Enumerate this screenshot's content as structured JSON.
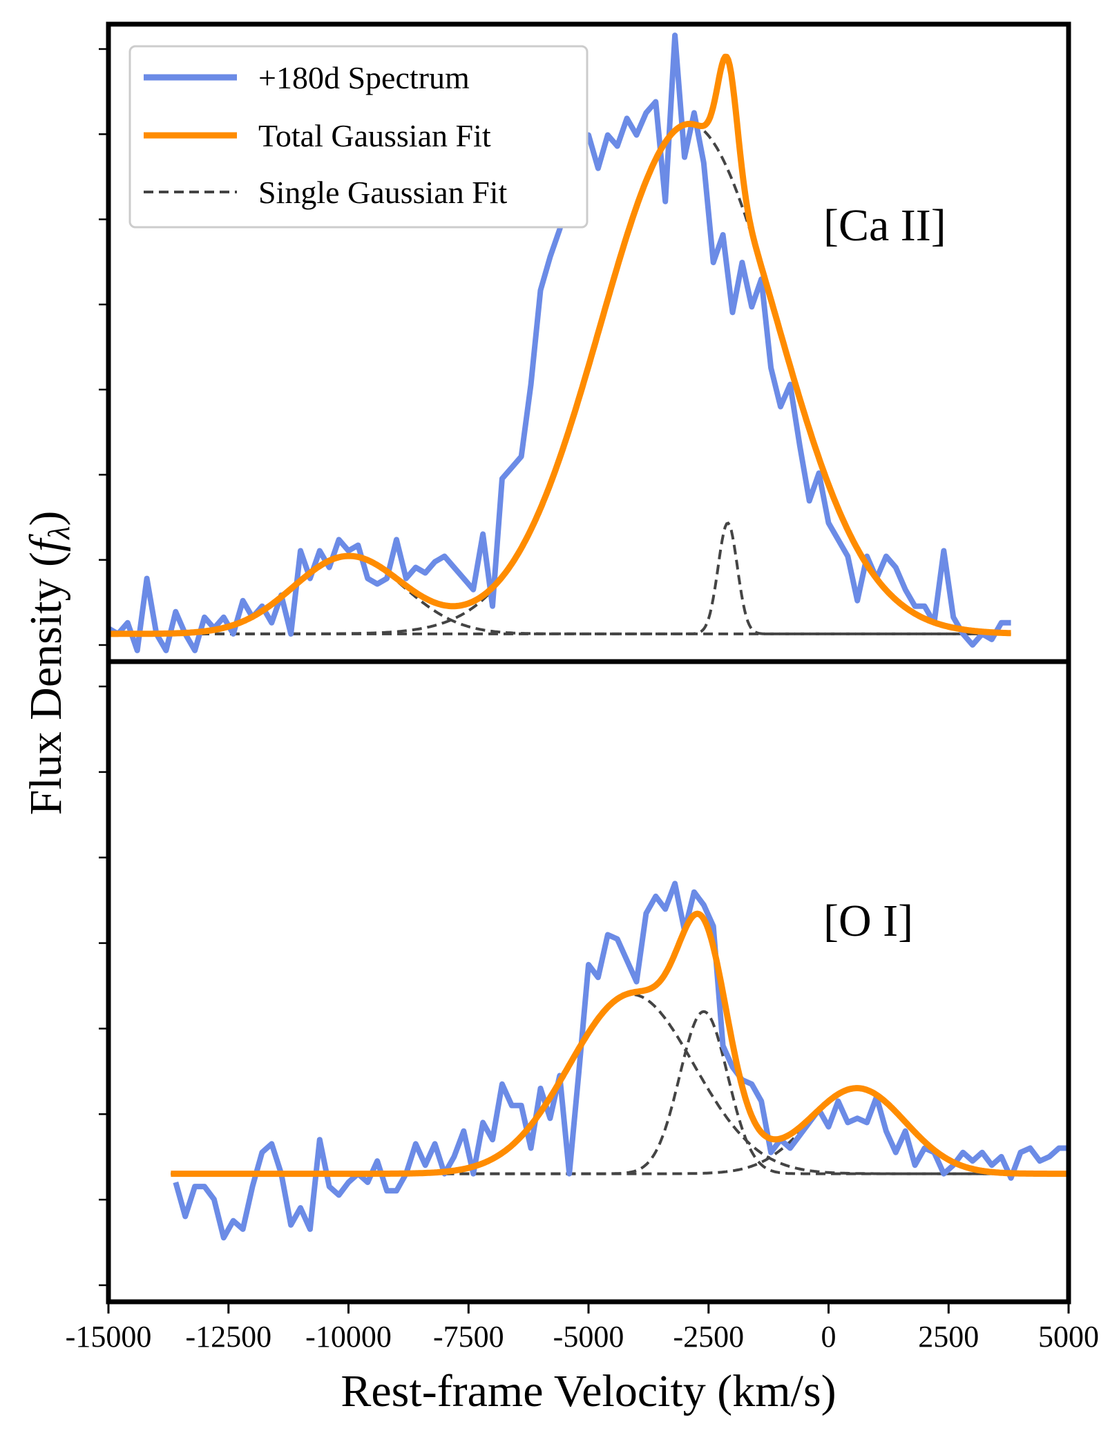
{
  "chart_data": {
    "type": "line",
    "figure": {
      "xlabel": "Rest-frame Velocity (km/s)",
      "ylabel_text": "Flux Density (",
      "ylabel_symbol": "f",
      "ylabel_subscript": "λ",
      "ylabel_close": ")",
      "xlim": [
        -15000,
        5000
      ],
      "xticks": [
        -15000,
        -12500,
        -10000,
        -7500,
        -5000,
        -2500,
        0,
        2500,
        5000
      ],
      "xtick_labels": [
        "-15000",
        "-12500",
        "-10000",
        "-7500",
        "-5000",
        "-2500",
        "0",
        "2500",
        "5000"
      ],
      "y_tick_labels_shown": false,
      "colors": {
        "spectrum": "#6b8be6",
        "total_fit": "#ff8c00",
        "component": "#444444"
      }
    },
    "legend": {
      "placement": "top-left of upper panel",
      "entries": [
        {
          "label": "+180d Spectrum",
          "style": "spectrum"
        },
        {
          "label": "Total Gaussian Fit",
          "style": "total"
        },
        {
          "label": "Single Gaussian Fit",
          "style": "component"
        }
      ]
    },
    "panels": [
      {
        "label": "[Ca II]",
        "ylim": [
          -0.05,
          1.1
        ],
        "baseline": 0,
        "spectrum": {
          "name": "+180d Spectrum",
          "x": [
            -15000,
            -14800,
            -14600,
            -14400,
            -14200,
            -14000,
            -13800,
            -13600,
            -13400,
            -13200,
            -13000,
            -12800,
            -12600,
            -12400,
            -12200,
            -12000,
            -11800,
            -11600,
            -11400,
            -11200,
            -11000,
            -10800,
            -10600,
            -10400,
            -10200,
            -10000,
            -9800,
            -9600,
            -9400,
            -9200,
            -9000,
            -8800,
            -8600,
            -8400,
            -8200,
            -8000,
            -7800,
            -7600,
            -7400,
            -7200,
            -7000,
            -6800,
            -6600,
            -6400,
            -6200,
            -6000,
            -5800,
            -5600,
            -5400,
            -5200,
            -5000,
            -4800,
            -4600,
            -4400,
            -4200,
            -4000,
            -3800,
            -3600,
            -3400,
            -3200,
            -3000,
            -2800,
            -2600,
            -2400,
            -2200,
            -2000,
            -1800,
            -1600,
            -1400,
            -1200,
            -1000,
            -800,
            -600,
            -400,
            -200,
            0,
            200,
            400,
            600,
            800,
            1000,
            1200,
            1400,
            1600,
            1800,
            2000,
            2200,
            2400,
            2600,
            2800,
            3000,
            3200,
            3400,
            3600,
            3800
          ],
          "values": [
            0.01,
            0.0,
            0.02,
            -0.03,
            0.1,
            0.0,
            -0.03,
            0.04,
            0.0,
            -0.03,
            0.03,
            0.01,
            0.03,
            0.0,
            0.06,
            0.03,
            0.05,
            0.02,
            0.07,
            0.0,
            0.15,
            0.1,
            0.15,
            0.12,
            0.17,
            0.15,
            0.16,
            0.1,
            0.09,
            0.1,
            0.17,
            0.1,
            0.12,
            0.11,
            0.13,
            0.14,
            0.12,
            0.1,
            0.08,
            0.18,
            0.05,
            0.28,
            0.3,
            0.32,
            0.45,
            0.62,
            0.68,
            0.73,
            0.79,
            0.86,
            0.9,
            0.84,
            0.9,
            0.88,
            0.93,
            0.9,
            0.94,
            0.96,
            0.78,
            1.08,
            0.86,
            0.94,
            0.85,
            0.67,
            0.72,
            0.58,
            0.67,
            0.59,
            0.64,
            0.48,
            0.41,
            0.45,
            0.34,
            0.24,
            0.29,
            0.2,
            0.17,
            0.14,
            0.06,
            0.14,
            0.1,
            0.14,
            0.12,
            0.08,
            0.05,
            0.05,
            0.02,
            0.15,
            0.03,
            0.0,
            -0.02,
            0.0,
            -0.01,
            0.02,
            0.02
          ]
        },
        "total_fit": {
          "name": "Total Gaussian Fit",
          "x_range": [
            -15000,
            3800
          ],
          "baseline": 0
        },
        "components": [
          {
            "name": "Single Gaussian Fit",
            "amplitude": 0.14,
            "center": -10000,
            "sigma": 1150
          },
          {
            "name": "Single Gaussian Fit",
            "amplitude": 0.92,
            "center": -2900,
            "sigma": 1850
          },
          {
            "name": "Single Gaussian Fit",
            "amplitude": 0.2,
            "center": -2100,
            "sigma": 200
          }
        ]
      },
      {
        "label": "[O I]",
        "ylim": [
          -0.3,
          1.2
        ],
        "baseline": 0,
        "spectrum": {
          "name": "+180d Spectrum",
          "x": [
            -13600,
            -13400,
            -13200,
            -13000,
            -12800,
            -12600,
            -12400,
            -12200,
            -12000,
            -11800,
            -11600,
            -11400,
            -11200,
            -11000,
            -10800,
            -10600,
            -10400,
            -10200,
            -10000,
            -9800,
            -9600,
            -9400,
            -9200,
            -9000,
            -8800,
            -8600,
            -8400,
            -8200,
            -8000,
            -7800,
            -7600,
            -7400,
            -7200,
            -7000,
            -6800,
            -6600,
            -6400,
            -6200,
            -6000,
            -5800,
            -5600,
            -5400,
            -5200,
            -5000,
            -4800,
            -4600,
            -4400,
            -4200,
            -4000,
            -3800,
            -3600,
            -3400,
            -3200,
            -3000,
            -2800,
            -2600,
            -2400,
            -2200,
            -2000,
            -1800,
            -1600,
            -1400,
            -1200,
            -1000,
            -800,
            -600,
            -400,
            -200,
            0,
            200,
            400,
            600,
            800,
            1000,
            1200,
            1400,
            1600,
            1800,
            2000,
            2200,
            2400,
            2600,
            2800,
            3000,
            3200,
            3400,
            3600,
            3800,
            4000,
            4200,
            4400,
            4600,
            4800,
            5000
          ],
          "values": [
            -0.02,
            -0.1,
            -0.03,
            -0.03,
            -0.06,
            -0.15,
            -0.11,
            -0.13,
            -0.03,
            0.05,
            0.07,
            0.0,
            -0.12,
            -0.08,
            -0.13,
            0.08,
            -0.03,
            -0.05,
            -0.02,
            0.0,
            -0.02,
            0.03,
            -0.04,
            -0.04,
            0.0,
            0.07,
            0.02,
            0.07,
            0.0,
            0.04,
            0.1,
            0.0,
            0.12,
            0.08,
            0.21,
            0.16,
            0.16,
            0.06,
            0.2,
            0.13,
            0.23,
            0.0,
            0.24,
            0.49,
            0.46,
            0.56,
            0.55,
            0.5,
            0.45,
            0.61,
            0.65,
            0.62,
            0.68,
            0.57,
            0.66,
            0.63,
            0.58,
            0.3,
            0.25,
            0.22,
            0.21,
            0.17,
            0.05,
            0.08,
            0.06,
            0.09,
            0.12,
            0.15,
            0.11,
            0.17,
            0.12,
            0.13,
            0.12,
            0.18,
            0.1,
            0.05,
            0.1,
            0.02,
            0.06,
            0.05,
            0.0,
            0.02,
            0.05,
            0.03,
            0.05,
            0.02,
            0.04,
            -0.01,
            0.05,
            0.06,
            0.03,
            0.04,
            0.06,
            0.06
          ]
        },
        "total_fit": {
          "name": "Total Gaussian Fit",
          "x_range": [
            -13700,
            5000
          ],
          "baseline": 0
        },
        "components": [
          {
            "name": "Single Gaussian Fit",
            "amplitude": 0.42,
            "center": -4100,
            "sigma": 1300
          },
          {
            "name": "Single Gaussian Fit",
            "amplitude": 0.38,
            "center": -2600,
            "sigma": 500
          },
          {
            "name": "Single Gaussian Fit",
            "amplitude": 0.2,
            "center": 600,
            "sigma": 1000
          }
        ]
      }
    ]
  }
}
